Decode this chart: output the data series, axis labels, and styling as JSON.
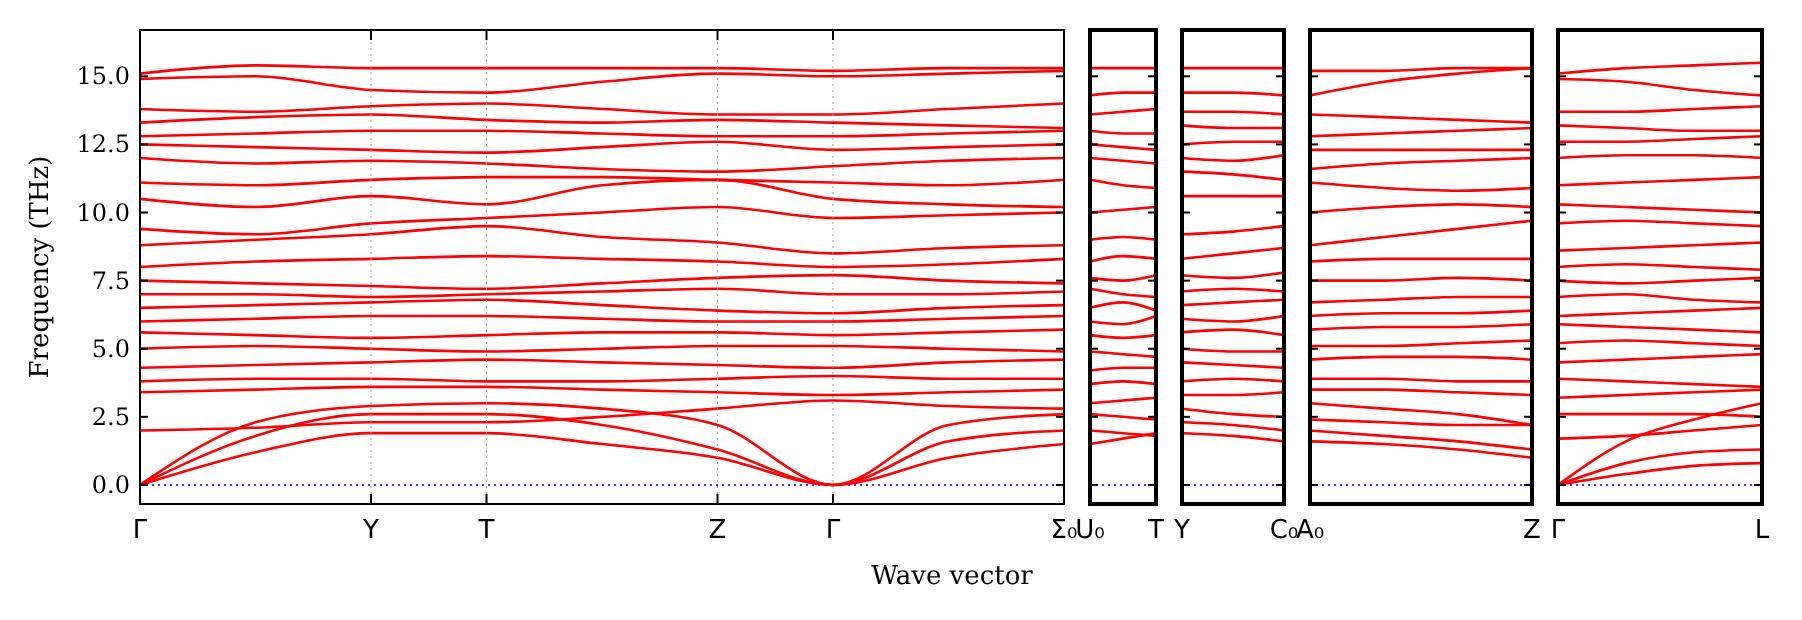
{
  "chart_data": [
    {
      "type": "line",
      "grid": "x",
      "ylabel": "Frequency (THz)",
      "xlabel": "Wave vector",
      "color": "#ff0000",
      "ylim": [
        -0.7,
        16.7
      ],
      "yticks": [
        {
          "value": 0,
          "label": "0.0"
        },
        {
          "value": 2.5,
          "label": "2.5"
        },
        {
          "value": 5,
          "label": "5.0"
        },
        {
          "value": 7.5,
          "label": "7.5"
        },
        {
          "value": 10,
          "label": "10.0"
        },
        {
          "value": 12.5,
          "label": "12.5"
        },
        {
          "value": 15,
          "label": "15.0"
        }
      ],
      "categories": [
        "Γ",
        null,
        "Y",
        "T",
        null,
        "Z",
        "Γ",
        null,
        "Σ₀"
      ],
      "ref_lines": [
        {
          "axis": "y",
          "value": 0,
          "color": "#0000ff",
          "line_style": "dotted"
        }
      ],
      "series": [
        {
          "values": [
            0,
            1.2,
            1.9,
            1.9,
            1.5,
            1.0,
            0,
            1.0,
            1.5
          ]
        },
        {
          "values": [
            0,
            1.8,
            2.6,
            2.6,
            2.2,
            1.3,
            0,
            1.6,
            2.0
          ]
        },
        {
          "values": [
            0,
            2.3,
            2.9,
            3.0,
            2.8,
            2.2,
            0,
            2.2,
            2.6
          ]
        },
        {
          "values": [
            2.0,
            2.1,
            2.3,
            2.3,
            2.5,
            2.8,
            3.1,
            2.9,
            2.8
          ]
        },
        {
          "values": [
            3.4,
            3.5,
            3.6,
            3.6,
            3.5,
            3.4,
            3.3,
            3.4,
            3.5
          ]
        },
        {
          "values": [
            3.8,
            3.9,
            3.9,
            3.8,
            3.8,
            3.9,
            4.0,
            3.9,
            3.9
          ]
        },
        {
          "values": [
            4.3,
            4.4,
            4.5,
            4.6,
            4.5,
            4.4,
            4.3,
            4.5,
            4.6
          ]
        },
        {
          "values": [
            5.0,
            5.1,
            5.0,
            4.9,
            5.0,
            5.1,
            5.1,
            5.0,
            4.9
          ]
        },
        {
          "values": [
            5.6,
            5.5,
            5.4,
            5.5,
            5.6,
            5.6,
            5.5,
            5.6,
            5.7
          ]
        },
        {
          "values": [
            6.0,
            6.1,
            6.2,
            6.2,
            6.1,
            6.0,
            6.0,
            6.1,
            6.2
          ]
        },
        {
          "values": [
            6.5,
            6.6,
            6.7,
            6.8,
            6.6,
            6.4,
            6.3,
            6.5,
            6.6
          ]
        },
        {
          "values": [
            7.0,
            7.0,
            6.9,
            7.0,
            7.1,
            7.2,
            7.0,
            7.0,
            7.1
          ]
        },
        {
          "values": [
            7.5,
            7.4,
            7.3,
            7.2,
            7.4,
            7.6,
            7.7,
            7.5,
            7.4
          ]
        },
        {
          "values": [
            8.0,
            8.2,
            8.3,
            8.4,
            8.3,
            8.2,
            8.0,
            8.1,
            8.3
          ]
        },
        {
          "values": [
            8.8,
            9.0,
            9.2,
            9.5,
            9.1,
            8.9,
            8.5,
            8.7,
            8.8
          ]
        },
        {
          "values": [
            9.4,
            9.2,
            9.6,
            9.8,
            10.0,
            10.2,
            9.8,
            9.9,
            10.0
          ]
        },
        {
          "values": [
            10.5,
            10.2,
            10.6,
            10.3,
            11.0,
            11.2,
            10.5,
            10.3,
            10.2
          ]
        },
        {
          "values": [
            11.1,
            11.0,
            11.2,
            11.3,
            11.3,
            11.2,
            11.1,
            11.0,
            11.2
          ]
        },
        {
          "values": [
            12.0,
            11.8,
            11.9,
            11.8,
            11.6,
            11.5,
            11.7,
            11.9,
            12.0
          ]
        },
        {
          "values": [
            12.5,
            12.4,
            12.3,
            12.2,
            12.4,
            12.6,
            12.3,
            12.4,
            12.5
          ]
        },
        {
          "values": [
            12.8,
            12.9,
            13.0,
            13.0,
            12.9,
            12.8,
            12.8,
            12.9,
            13.0
          ]
        },
        {
          "values": [
            13.3,
            13.5,
            13.6,
            13.4,
            13.3,
            13.4,
            13.3,
            13.2,
            13.1
          ]
        },
        {
          "values": [
            13.8,
            13.7,
            13.9,
            14.0,
            13.8,
            13.6,
            13.6,
            13.8,
            14.0
          ]
        },
        {
          "values": [
            14.9,
            15.0,
            14.5,
            14.4,
            14.8,
            15.1,
            15.0,
            15.1,
            15.2
          ]
        },
        {
          "values": [
            15.1,
            15.4,
            15.3,
            15.3,
            15.3,
            15.3,
            15.2,
            15.3,
            15.3
          ]
        }
      ]
    },
    {
      "type": "line",
      "color": "#ff0000",
      "tick_labels": "x",
      "ylim": [
        -0.7,
        16.7
      ],
      "yticks": [
        {
          "value": 0,
          "label": null
        },
        {
          "value": 2.5,
          "label": null
        },
        {
          "value": 5,
          "label": null
        },
        {
          "value": 7.5,
          "label": null
        },
        {
          "value": 10,
          "label": null
        },
        {
          "value": 12.5,
          "label": null
        },
        {
          "value": 15,
          "label": null
        }
      ],
      "categories": [
        "U₀",
        null,
        "T"
      ],
      "ref_lines": [
        {
          "axis": "y",
          "value": 0,
          "color": "#0000ff",
          "line_style": "dotted"
        }
      ],
      "series": [
        {
          "values": [
            1.5,
            1.7,
            1.9
          ]
        },
        {
          "values": [
            2.0,
            1.9,
            1.8
          ]
        },
        {
          "values": [
            2.6,
            2.5,
            2.4
          ]
        },
        {
          "values": [
            3.0,
            3.1,
            3.2
          ]
        },
        {
          "values": [
            3.7,
            3.8,
            3.7
          ]
        },
        {
          "values": [
            4.2,
            4.3,
            4.3
          ]
        },
        {
          "values": [
            4.9,
            4.8,
            4.7
          ]
        },
        {
          "values": [
            5.5,
            5.4,
            5.5
          ]
        },
        {
          "values": [
            6.0,
            5.9,
            6.2
          ]
        },
        {
          "values": [
            6.5,
            6.7,
            6.4
          ]
        },
        {
          "values": [
            7.2,
            7.0,
            6.9
          ]
        },
        {
          "values": [
            7.6,
            7.5,
            7.7
          ]
        },
        {
          "values": [
            8.2,
            8.4,
            8.3
          ]
        },
        {
          "values": [
            9.0,
            9.1,
            9.0
          ]
        },
        {
          "values": [
            10.0,
            10.1,
            10.2
          ]
        },
        {
          "values": [
            11.2,
            11.0,
            10.9
          ]
        },
        {
          "values": [
            12.0,
            11.9,
            11.8
          ]
        },
        {
          "values": [
            12.5,
            12.4,
            12.3
          ]
        },
        {
          "values": [
            13.0,
            12.9,
            12.9
          ]
        },
        {
          "values": [
            13.6,
            13.7,
            13.8
          ]
        },
        {
          "values": [
            14.3,
            14.4,
            14.4
          ]
        },
        {
          "values": [
            15.3,
            15.3,
            15.3
          ]
        }
      ]
    },
    {
      "type": "line",
      "color": "#ff0000",
      "tick_labels": "x",
      "ylim": [
        -0.7,
        16.7
      ],
      "yticks": [
        {
          "value": 0,
          "label": null
        },
        {
          "value": 2.5,
          "label": null
        },
        {
          "value": 5,
          "label": null
        },
        {
          "value": 7.5,
          "label": null
        },
        {
          "value": 10,
          "label": null
        },
        {
          "value": 12.5,
          "label": null
        },
        {
          "value": 15,
          "label": null
        }
      ],
      "categories": [
        "Y",
        null,
        "C₀"
      ],
      "ref_lines": [
        {
          "axis": "y",
          "value": 0,
          "color": "#0000ff",
          "line_style": "dotted"
        }
      ],
      "series": [
        {
          "values": [
            1.9,
            1.8,
            1.6
          ]
        },
        {
          "values": [
            2.3,
            2.2,
            2.0
          ]
        },
        {
          "values": [
            2.8,
            2.6,
            2.5
          ]
        },
        {
          "values": [
            3.3,
            3.3,
            3.4
          ]
        },
        {
          "values": [
            3.8,
            3.9,
            3.8
          ]
        },
        {
          "values": [
            4.5,
            4.4,
            4.3
          ]
        },
        {
          "values": [
            5.0,
            4.9,
            4.9
          ]
        },
        {
          "values": [
            5.6,
            5.7,
            5.5
          ]
        },
        {
          "values": [
            6.1,
            6.0,
            6.2
          ]
        },
        {
          "values": [
            6.6,
            6.7,
            6.8
          ]
        },
        {
          "values": [
            7.1,
            7.2,
            7.1
          ]
        },
        {
          "values": [
            7.7,
            7.6,
            7.8
          ]
        },
        {
          "values": [
            8.3,
            8.5,
            8.7
          ]
        },
        {
          "values": [
            9.2,
            9.3,
            9.5
          ]
        },
        {
          "values": [
            10.6,
            10.6,
            10.6
          ]
        },
        {
          "values": [
            11.5,
            11.4,
            11.2
          ]
        },
        {
          "values": [
            12.0,
            11.9,
            12.1
          ]
        },
        {
          "values": [
            12.5,
            12.6,
            12.6
          ]
        },
        {
          "values": [
            13.2,
            13.1,
            13.1
          ]
        },
        {
          "values": [
            13.7,
            13.7,
            13.6
          ]
        },
        {
          "values": [
            14.4,
            14.4,
            14.3
          ]
        },
        {
          "values": [
            15.3,
            15.3,
            15.3
          ]
        }
      ]
    },
    {
      "type": "line",
      "color": "#ff0000",
      "tick_labels": "x",
      "ylim": [
        -0.7,
        16.7
      ],
      "yticks": [
        {
          "value": 0,
          "label": null
        },
        {
          "value": 2.5,
          "label": null
        },
        {
          "value": 5,
          "label": null
        },
        {
          "value": 7.5,
          "label": null
        },
        {
          "value": 10,
          "label": null
        },
        {
          "value": 12.5,
          "label": null
        },
        {
          "value": 15,
          "label": null
        }
      ],
      "categories": [
        "A₀",
        null,
        null,
        "Z"
      ],
      "ref_lines": [
        {
          "axis": "y",
          "value": 0,
          "color": "#0000ff",
          "line_style": "dotted"
        }
      ],
      "series": [
        {
          "values": [
            1.6,
            1.5,
            1.3,
            1.0
          ]
        },
        {
          "values": [
            2.0,
            1.8,
            1.6,
            1.3
          ]
        },
        {
          "values": [
            2.4,
            2.3,
            2.2,
            2.2
          ]
        },
        {
          "values": [
            3.0,
            2.8,
            2.6,
            2.2
          ]
        },
        {
          "values": [
            3.5,
            3.5,
            3.4,
            3.3
          ]
        },
        {
          "values": [
            3.9,
            3.9,
            3.8,
            3.8
          ]
        },
        {
          "values": [
            4.6,
            4.7,
            4.7,
            4.6
          ]
        },
        {
          "values": [
            5.1,
            5.1,
            5.2,
            5.3
          ]
        },
        {
          "values": [
            5.7,
            5.8,
            5.8,
            5.9
          ]
        },
        {
          "values": [
            6.2,
            6.3,
            6.3,
            6.4
          ]
        },
        {
          "values": [
            6.7,
            6.8,
            6.9,
            6.9
          ]
        },
        {
          "values": [
            7.5,
            7.5,
            7.6,
            7.5
          ]
        },
        {
          "values": [
            8.2,
            8.3,
            8.3,
            8.3
          ]
        },
        {
          "values": [
            8.8,
            9.1,
            9.4,
            9.7
          ]
        },
        {
          "values": [
            10.0,
            10.2,
            10.3,
            10.2
          ]
        },
        {
          "values": [
            11.1,
            10.9,
            10.8,
            10.9
          ]
        },
        {
          "values": [
            11.6,
            11.8,
            11.9,
            12.0
          ]
        },
        {
          "values": [
            12.3,
            12.3,
            12.3,
            12.3
          ]
        },
        {
          "values": [
            12.8,
            12.9,
            13.0,
            13.1
          ]
        },
        {
          "values": [
            13.6,
            13.5,
            13.4,
            13.3
          ]
        },
        {
          "values": [
            14.3,
            14.8,
            15.1,
            15.3
          ]
        },
        {
          "values": [
            15.2,
            15.2,
            15.3,
            15.3
          ]
        }
      ]
    },
    {
      "type": "line",
      "color": "#ff0000",
      "tick_labels": "x",
      "ylim": [
        -0.7,
        16.7
      ],
      "yticks": [
        {
          "value": 0,
          "label": null
        },
        {
          "value": 2.5,
          "label": null
        },
        {
          "value": 5,
          "label": null
        },
        {
          "value": 7.5,
          "label": null
        },
        {
          "value": 10,
          "label": null
        },
        {
          "value": 12.5,
          "label": null
        },
        {
          "value": 15,
          "label": null
        }
      ],
      "categories": [
        "Γ",
        null,
        null,
        "L"
      ],
      "ref_lines": [
        {
          "axis": "y",
          "value": 0,
          "color": "#0000ff",
          "line_style": "dotted"
        }
      ],
      "series": [
        {
          "values": [
            0,
            0.4,
            0.7,
            0.8
          ]
        },
        {
          "values": [
            0,
            0.8,
            1.2,
            1.3
          ]
        },
        {
          "values": [
            0,
            1.6,
            2.4,
            3.0
          ]
        },
        {
          "values": [
            1.7,
            1.8,
            2.0,
            2.2
          ]
        },
        {
          "values": [
            2.6,
            2.6,
            2.6,
            2.5
          ]
        },
        {
          "values": [
            3.2,
            3.3,
            3.4,
            3.5
          ]
        },
        {
          "values": [
            3.9,
            3.8,
            3.7,
            3.6
          ]
        },
        {
          "values": [
            4.5,
            4.6,
            4.7,
            4.8
          ]
        },
        {
          "values": [
            5.2,
            5.3,
            5.2,
            5.1
          ]
        },
        {
          "values": [
            5.9,
            5.8,
            5.7,
            5.6
          ]
        },
        {
          "values": [
            6.2,
            6.3,
            6.4,
            6.5
          ]
        },
        {
          "values": [
            6.9,
            7.0,
            6.8,
            6.7
          ]
        },
        {
          "values": [
            7.5,
            7.4,
            7.5,
            7.6
          ]
        },
        {
          "values": [
            8.0,
            8.1,
            8.0,
            7.9
          ]
        },
        {
          "values": [
            8.6,
            8.7,
            8.8,
            8.9
          ]
        },
        {
          "values": [
            9.6,
            9.7,
            9.6,
            9.5
          ]
        },
        {
          "values": [
            10.3,
            10.2,
            10.1,
            10.0
          ]
        },
        {
          "values": [
            11.0,
            11.1,
            11.2,
            11.3
          ]
        },
        {
          "values": [
            12.0,
            12.1,
            12.1,
            12.0
          ]
        },
        {
          "values": [
            12.6,
            12.6,
            12.7,
            12.8
          ]
        },
        {
          "values": [
            13.2,
            13.1,
            13.0,
            13.0
          ]
        },
        {
          "values": [
            13.7,
            13.7,
            13.8,
            13.9
          ]
        },
        {
          "values": [
            14.9,
            14.8,
            14.5,
            14.3
          ]
        },
        {
          "values": [
            15.1,
            15.3,
            15.4,
            15.5
          ]
        }
      ]
    }
  ]
}
